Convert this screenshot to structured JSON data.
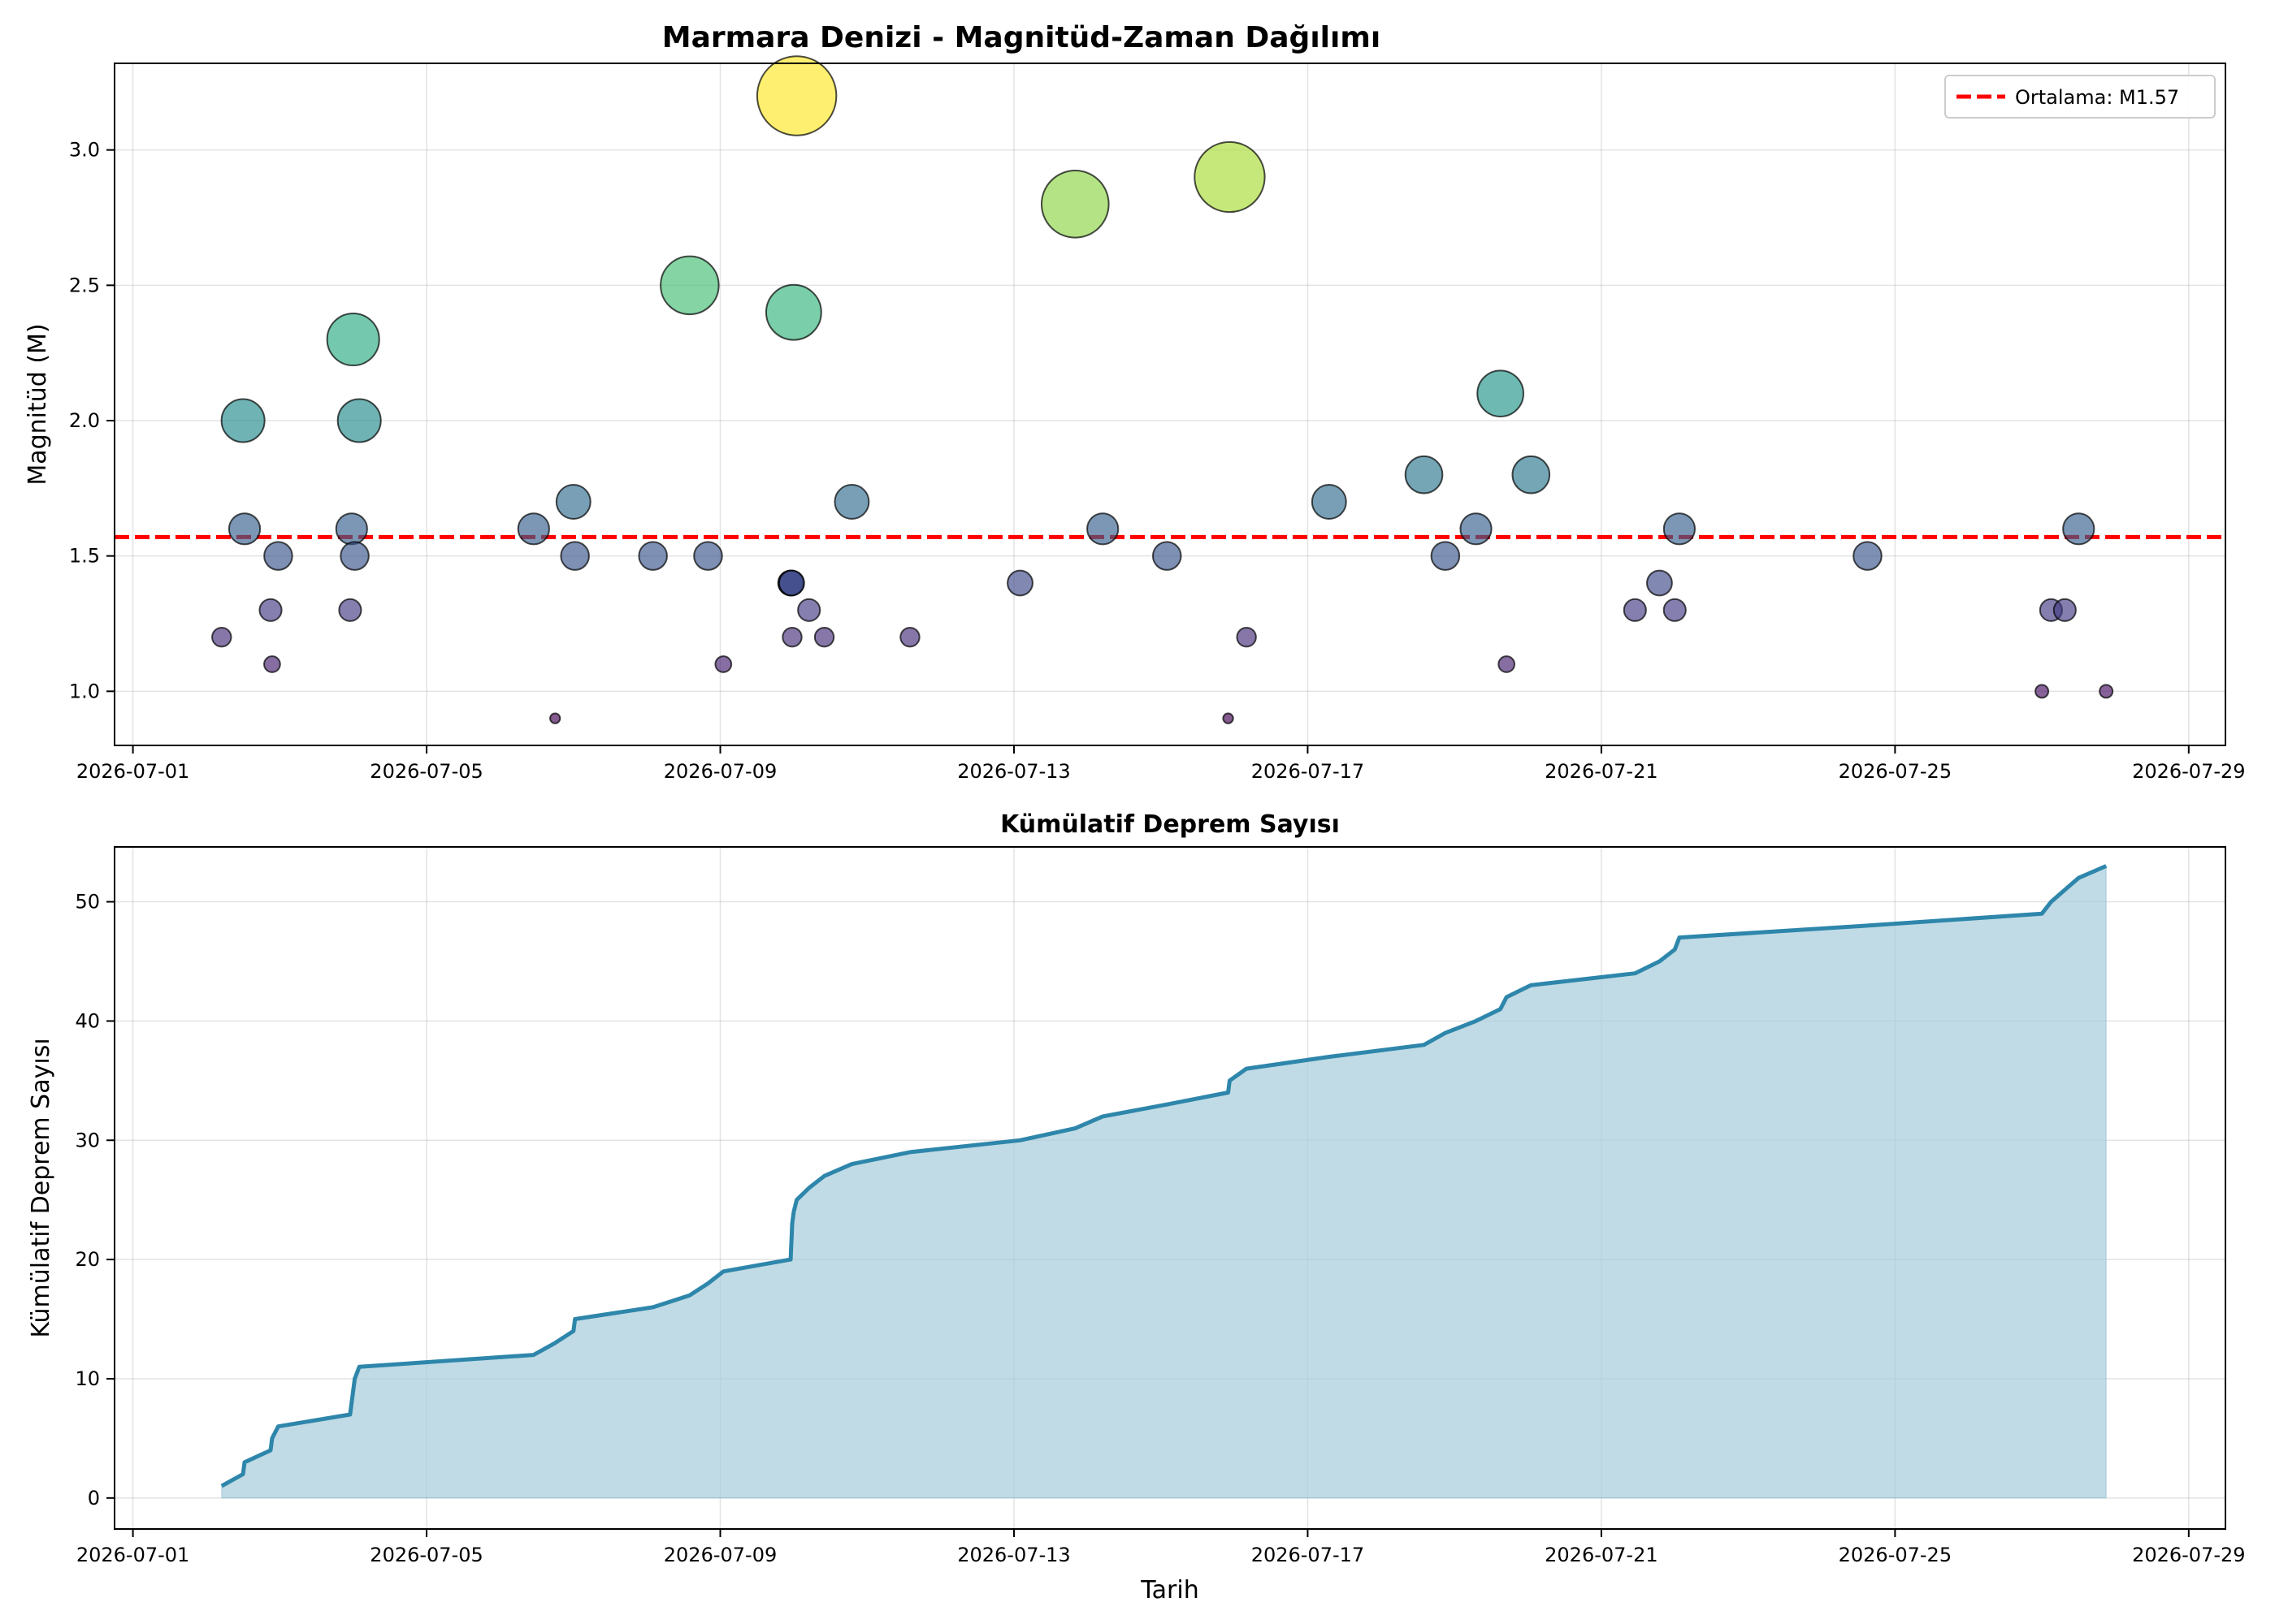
{
  "chart_data": [
    {
      "type": "scatter",
      "title": "Marmara Denizi - Magnitüd-Zaman Dağılımı",
      "xlabel": "",
      "ylabel": "Magnitüd (M)",
      "x_axis_type": "date",
      "xlim": [
        "2026-06-30T18:00",
        "2026-07-29T12:00"
      ],
      "ylim": [
        0.8,
        3.32
      ],
      "x_ticks": [
        "2026-07-01",
        "2026-07-05",
        "2026-07-09",
        "2026-07-13",
        "2026-07-17",
        "2026-07-21",
        "2026-07-25",
        "2026-07-29"
      ],
      "y_ticks": [
        "1.0",
        "1.5",
        "2.0",
        "2.5",
        "3.0"
      ],
      "grid": true,
      "colormap": "viridis",
      "color_range": [
        0.9,
        3.2
      ],
      "marker_size": "proportional to magnitude",
      "legend_position": "top-right",
      "mean_line": {
        "value": 1.57,
        "label": "Ortalama: M1.57",
        "color": "#ff0000",
        "style": "dashed"
      },
      "points": [
        {
          "t": "2026-07-02T05:00",
          "mag": 1.2
        },
        {
          "t": "2026-07-02T12:00",
          "mag": 2.0
        },
        {
          "t": "2026-07-02T12:30",
          "mag": 1.6
        },
        {
          "t": "2026-07-02T21:00",
          "mag": 1.3
        },
        {
          "t": "2026-07-02T21:30",
          "mag": 1.1
        },
        {
          "t": "2026-07-02T23:30",
          "mag": 1.5
        },
        {
          "t": "2026-07-03T23:00",
          "mag": 1.3
        },
        {
          "t": "2026-07-03T23:30",
          "mag": 1.6
        },
        {
          "t": "2026-07-04T00:00",
          "mag": 2.3
        },
        {
          "t": "2026-07-04T00:30",
          "mag": 1.5
        },
        {
          "t": "2026-07-04T02:00",
          "mag": 2.0
        },
        {
          "t": "2026-07-06T11:00",
          "mag": 1.6
        },
        {
          "t": "2026-07-06T18:00",
          "mag": 0.9
        },
        {
          "t": "2026-07-07T00:00",
          "mag": 1.7
        },
        {
          "t": "2026-07-07T00:30",
          "mag": 1.5
        },
        {
          "t": "2026-07-08T02:00",
          "mag": 1.5
        },
        {
          "t": "2026-07-08T14:00",
          "mag": 2.5
        },
        {
          "t": "2026-07-08T20:00",
          "mag": 1.5
        },
        {
          "t": "2026-07-09T01:00",
          "mag": 1.1
        },
        {
          "t": "2026-07-09T23:00",
          "mag": 1.4
        },
        {
          "t": "2026-07-09T23:10",
          "mag": 1.4
        },
        {
          "t": "2026-07-09T23:20",
          "mag": 1.4
        },
        {
          "t": "2026-07-09T23:30",
          "mag": 1.2
        },
        {
          "t": "2026-07-10T00:00",
          "mag": 2.4
        },
        {
          "t": "2026-07-10T01:00",
          "mag": 3.2
        },
        {
          "t": "2026-07-10T05:00",
          "mag": 1.3
        },
        {
          "t": "2026-07-10T10:00",
          "mag": 1.2
        },
        {
          "t": "2026-07-10T19:00",
          "mag": 1.7
        },
        {
          "t": "2026-07-11T14:00",
          "mag": 1.2
        },
        {
          "t": "2026-07-13T02:00",
          "mag": 1.4
        },
        {
          "t": "2026-07-13T20:00",
          "mag": 2.8
        },
        {
          "t": "2026-07-14T05:00",
          "mag": 1.6
        },
        {
          "t": "2026-07-15T02:00",
          "mag": 1.5
        },
        {
          "t": "2026-07-15T22:00",
          "mag": 0.9
        },
        {
          "t": "2026-07-15T22:30",
          "mag": 2.9
        },
        {
          "t": "2026-07-16T04:00",
          "mag": 1.2
        },
        {
          "t": "2026-07-17T07:00",
          "mag": 1.7
        },
        {
          "t": "2026-07-18T14:00",
          "mag": 1.8
        },
        {
          "t": "2026-07-18T21:00",
          "mag": 1.5
        },
        {
          "t": "2026-07-19T07:00",
          "mag": 1.6
        },
        {
          "t": "2026-07-19T15:00",
          "mag": 2.1
        },
        {
          "t": "2026-07-19T17:00",
          "mag": 1.1
        },
        {
          "t": "2026-07-20T01:00",
          "mag": 1.8
        },
        {
          "t": "2026-07-21T11:00",
          "mag": 1.3
        },
        {
          "t": "2026-07-21T19:00",
          "mag": 1.4
        },
        {
          "t": "2026-07-22T00:00",
          "mag": 1.3
        },
        {
          "t": "2026-07-22T01:30",
          "mag": 1.6
        },
        {
          "t": "2026-07-24T15:00",
          "mag": 1.5
        },
        {
          "t": "2026-07-27T00:00",
          "mag": 1.0
        },
        {
          "t": "2026-07-27T03:00",
          "mag": 1.3
        },
        {
          "t": "2026-07-27T07:30",
          "mag": 1.3
        },
        {
          "t": "2026-07-27T12:00",
          "mag": 1.6
        },
        {
          "t": "2026-07-27T21:00",
          "mag": 1.0
        }
      ]
    },
    {
      "type": "area",
      "title": "Kümülatif Deprem Sayısı",
      "xlabel": "Tarih",
      "ylabel": "Kümülatif Deprem Sayısı",
      "x_axis_type": "date",
      "xlim": [
        "2026-06-30T18:00",
        "2026-07-29T12:00"
      ],
      "ylim": [
        -2.6,
        54.6
      ],
      "x_ticks": [
        "2026-07-01",
        "2026-07-05",
        "2026-07-09",
        "2026-07-13",
        "2026-07-17",
        "2026-07-21",
        "2026-07-25",
        "2026-07-29"
      ],
      "y_ticks": [
        "0",
        "10",
        "20",
        "30",
        "40",
        "50"
      ],
      "grid": true,
      "line_color": "#2e86ab",
      "fill_color": "#a8cddb",
      "note_values": "cumulative count of the earthquakes in the upper chart, in time order"
    }
  ]
}
